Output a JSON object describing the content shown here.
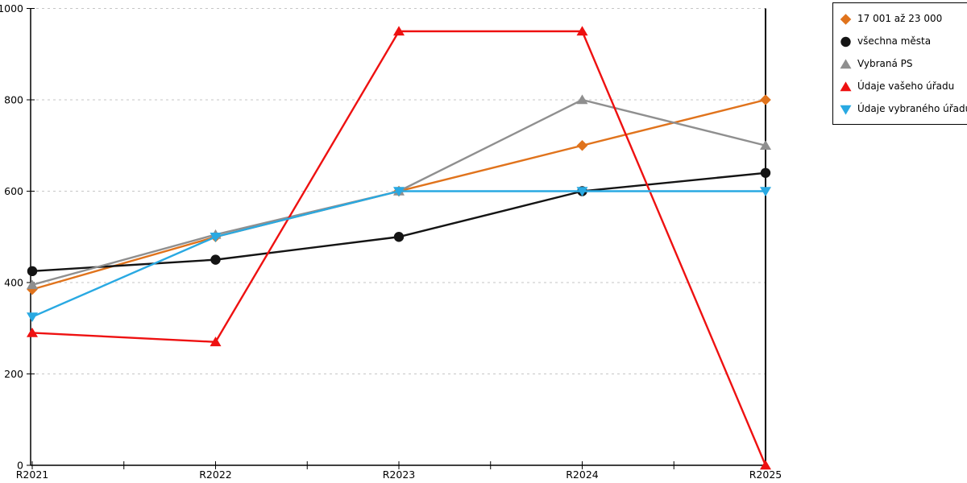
{
  "chart_data": {
    "type": "line",
    "title": "",
    "categories": [
      "R2021",
      "R2022",
      "R2023",
      "R2024",
      "R2025"
    ],
    "yticks": [
      0,
      200,
      400,
      600,
      800,
      1000
    ],
    "ylim": [
      0,
      1000
    ],
    "grid": "horizontal-dashed",
    "legend_position": "top-right",
    "series": [
      {
        "name": "17 001 až 23 000",
        "marker": "diamond",
        "color": "#e0731c",
        "values": [
          385,
          500,
          600,
          700,
          800
        ]
      },
      {
        "name": "všechna města",
        "marker": "circle",
        "color": "#141414",
        "values": [
          425,
          450,
          500,
          600,
          640
        ]
      },
      {
        "name": "Vybraná PS",
        "marker": "triangle-up",
        "color": "#8f8f8f",
        "values": [
          395,
          505,
          600,
          800,
          700
        ]
      },
      {
        "name": "Údaje vašeho úřadu",
        "marker": "triangle-up",
        "color": "#ee1111",
        "values": [
          290,
          270,
          950,
          950,
          0
        ]
      },
      {
        "name": "Údaje vybraného úřadu",
        "marker": "triangle-down",
        "color": "#29a9e2",
        "values": [
          325,
          500,
          600,
          600,
          600
        ]
      }
    ]
  },
  "colors": {
    "grid": "#c6c6c6",
    "axis": "#000000",
    "background": "#ffffff"
  }
}
